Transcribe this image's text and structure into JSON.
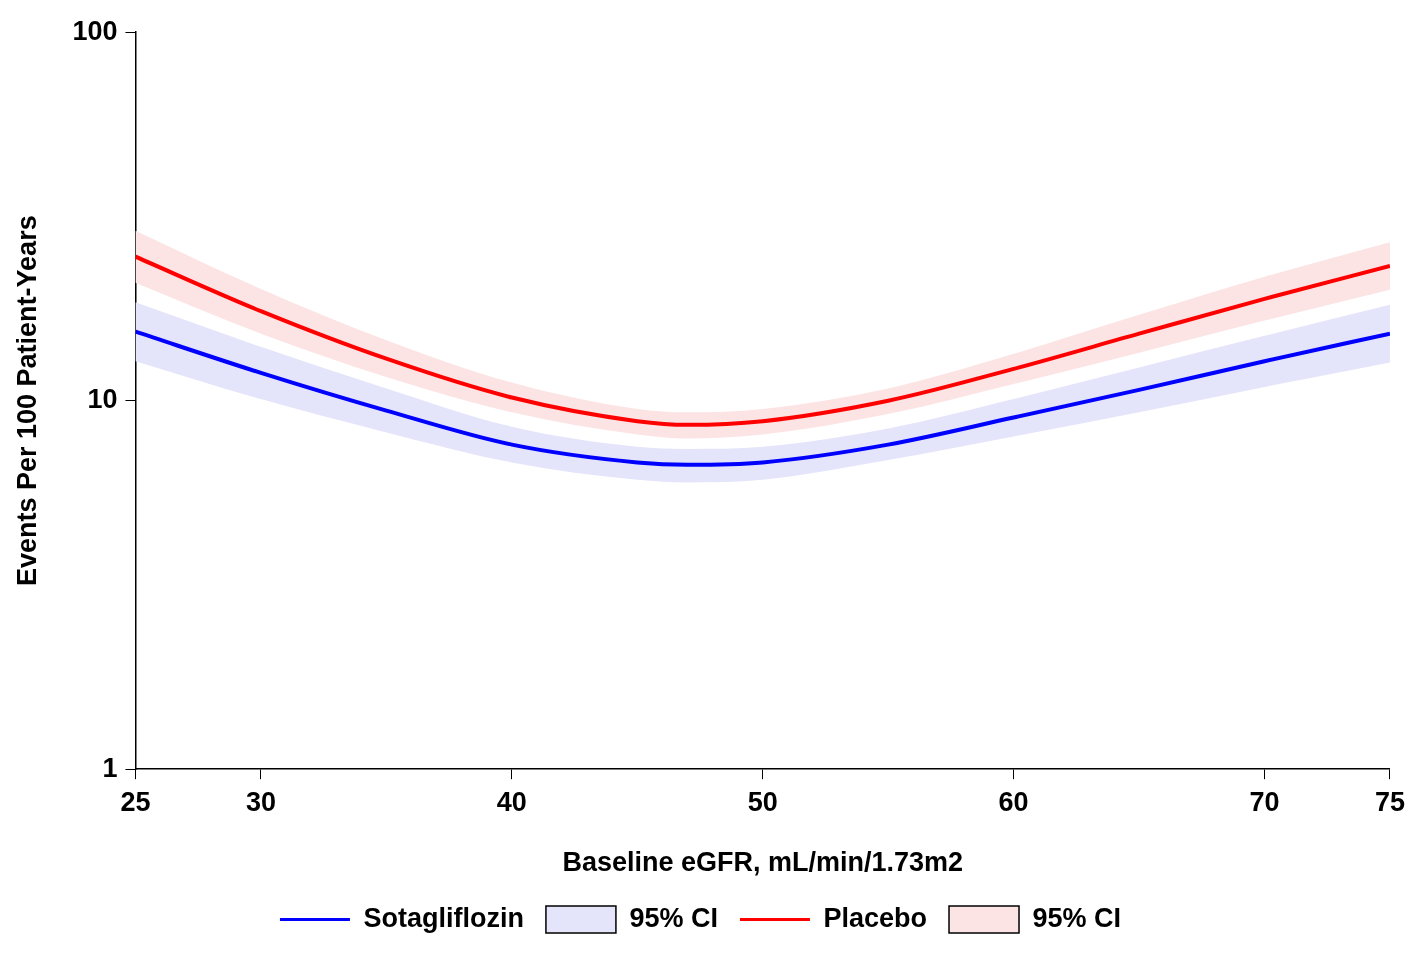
{
  "chart_data": {
    "type": "line",
    "xlabel": "Baseline eGFR, mL/min/1.73m2",
    "ylabel": "Events Per 100 Patient-Years",
    "log": "y",
    "grid": false,
    "legend": "bottom",
    "marker": "none",
    "line_style": "solid",
    "xlim": [
      25,
      75
    ],
    "xticks": [
      25,
      30,
      40,
      50,
      60,
      70,
      75
    ],
    "ylim": [
      1,
      100
    ],
    "yticks": [
      1,
      10,
      100
    ],
    "x": [
      25,
      30,
      35,
      40,
      45,
      47,
      50,
      55,
      60,
      65,
      70,
      75
    ],
    "series": [
      {
        "name": "Sotagliflozin",
        "type": "line",
        "color": "#0000ff",
        "values": [
          15.4,
          11.9,
          9.4,
          7.6,
          6.8,
          6.7,
          6.8,
          7.6,
          9.0,
          10.7,
          12.8,
          15.2
        ]
      },
      {
        "name": "95% CI",
        "type": "area",
        "color": "#e4e4fb",
        "values": [
          null,
          null,
          null,
          null,
          null,
          null,
          null,
          null,
          null,
          null,
          null,
          null
        ],
        "lower": [
          12.8,
          10.1,
          8.2,
          6.8,
          6.1,
          6.0,
          6.1,
          6.9,
          8.0,
          9.3,
          10.9,
          12.7
        ],
        "upper": [
          18.5,
          14.0,
          10.8,
          8.5,
          7.5,
          7.4,
          7.5,
          8.4,
          10.1,
          12.3,
          15.0,
          18.2
        ]
      },
      {
        "name": "Placebo",
        "type": "line",
        "color": "#ff0000",
        "values": [
          24.6,
          17.5,
          13.0,
          10.2,
          8.8,
          8.6,
          8.8,
          10.0,
          12.2,
          15.2,
          18.9,
          23.2
        ]
      },
      {
        "name": "95% CI",
        "type": "area",
        "color": "#fce4e4",
        "values": [
          null,
          null,
          null,
          null,
          null,
          null,
          null,
          null,
          null,
          null,
          null,
          null
        ],
        "lower": [
          20.9,
          15.2,
          11.6,
          9.3,
          8.1,
          7.9,
          8.1,
          9.2,
          11.1,
          13.5,
          16.5,
          20.0
        ],
        "upper": [
          28.9,
          20.1,
          14.6,
          11.2,
          9.5,
          9.3,
          9.5,
          10.8,
          13.4,
          17.1,
          21.7,
          26.9
        ]
      }
    ]
  }
}
